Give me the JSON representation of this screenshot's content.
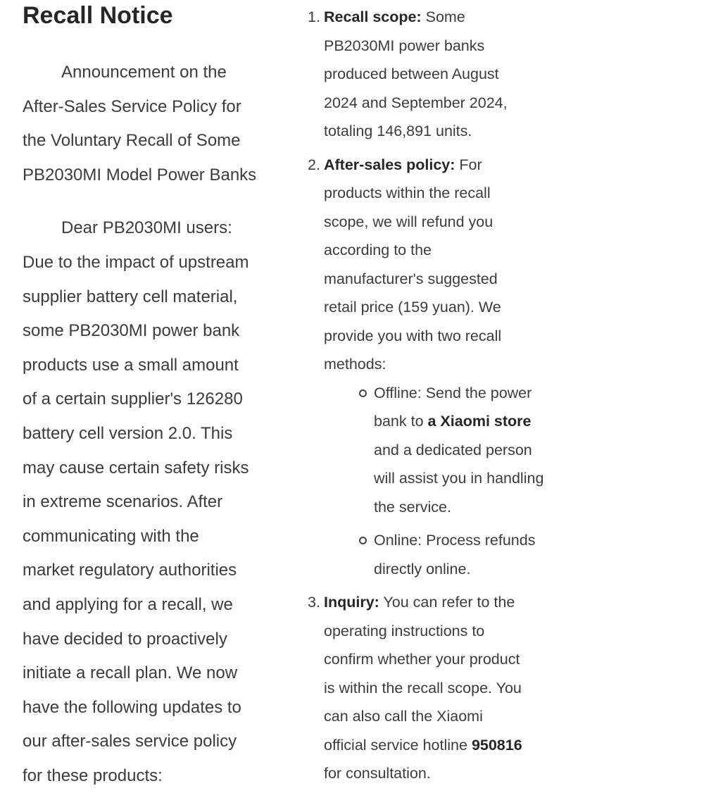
{
  "colors": {
    "background": "#ffffff",
    "body_text": "#3b3b3b",
    "emphasis_text": "#262626"
  },
  "article": {
    "title": "Recall Notice",
    "paragraphs": {
      "intro": "Announcement on the\nAfter-Sales Service Policy for\nthe Voluntary Recall of Some\nPB2030MI Model Power Banks",
      "body": "Dear PB2030MI users:\nDue to the impact of upstream\nsupplier battery cell material,\nsome PB2030MI power bank\nproducts use a small amount\nof a certain supplier's 126280\nbattery cell version 2.0. This\nmay cause certain safety risks\nin extreme scenarios. After\ncommunicating with the\nmarket regulatory authorities\nand applying for a recall, we\nhave decided to proactively\ninitiate a recall plan. We now\nhave the following updates to\nour after-sales service policy\nfor these products:"
    },
    "list": {
      "items": [
        {
          "number": "1.",
          "label": "Recall scope:",
          "pre": " Some\nPB2030MI power banks\nproduced between August\n2024 and September 2024,\ntotaling 146,891 units.",
          "bold": "",
          "post": ""
        },
        {
          "number": "2.",
          "label": "After-sales policy:",
          "pre": " For\nproducts within the recall\nscope, we will refund you\naccording to the\nmanufacturer's suggested\nretail price (159 yuan). We\nprovide you with two recall\nmethods:",
          "bold": "",
          "post": "",
          "methods": [
            {
              "bullet": "hollow-circle",
              "pre": "Offline: Send the power\nbank to ",
              "bold": "a Xiaomi store",
              "post": "\nand a dedicated person\nwill assist you in handling\nthe service."
            },
            {
              "bullet": "hollow-circle",
              "pre": "Online: Process refunds\ndirectly online.",
              "bold": "",
              "post": ""
            }
          ]
        },
        {
          "number": "3.",
          "label": "Inquiry:",
          "pre": " You can refer to the\noperating instructions to\nconfirm whether your product\nis within the recall scope. You\ncan also call the Xiaomi\nofficial service hotline ",
          "bold": "950816",
          "post": "\nfor consultation."
        }
      ]
    }
  }
}
